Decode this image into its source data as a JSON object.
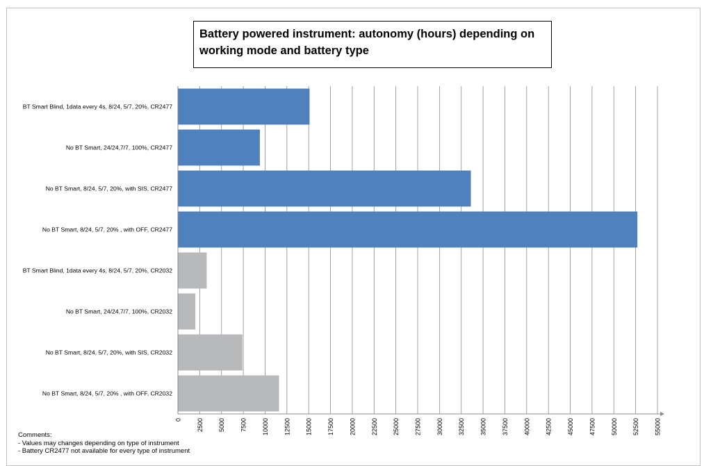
{
  "chart_data": {
    "type": "bar",
    "orientation": "horizontal",
    "title": "Battery powered instrument: autonomy  (hours) depending on working mode and battery type",
    "categories": [
      "BT Smart Blind, 1data every 4s, 8/24, 5/7, 20%, CR2477",
      "No BT Smart, 24/24,7/7, 100%, CR2477",
      "No BT Smart, 8/24, 5/7, 20%, with SIS, CR2477",
      "No BT Smart, 8/24, 5/7, 20% , with OFF, CR2477",
      "BT Smart Blind, 1data every 4s, 8/24, 5/7, 20%, CR2032",
      "No BT Smart, 24/24,7/7, 100%, CR2032",
      "No BT Smart, 8/24, 5/7, 20%, with SIS, CR2032",
      "No BT Smart, 8/24, 5/7, 20% , with OFF, CR2032"
    ],
    "values": [
      15100,
      9400,
      33600,
      52700,
      3300,
      2000,
      7400,
      11600
    ],
    "bar_colors": [
      "#4f81bd",
      "#4f81bd",
      "#4f81bd",
      "#4f81bd",
      "#b8b9bb",
      "#b8b9bb",
      "#b8b9bb",
      "#b8b9bb"
    ],
    "xlim": [
      0,
      55000
    ],
    "xticks": [
      "0",
      "2500",
      "5000",
      "7500",
      "10000",
      "12500",
      "15000",
      "17500",
      "20000",
      "22500",
      "25000",
      "27500",
      "30000",
      "32500",
      "35000",
      "37500",
      "40000",
      "42500",
      "45000",
      "47500",
      "50000",
      "52500",
      "55000"
    ],
    "xlabel": "",
    "ylabel": "",
    "grid": true,
    "legend": "none"
  },
  "title_text": "Battery powered instrument: autonomy  (hours) depending on working mode and battery type",
  "comments": {
    "heading": "Comments:",
    "line1": "- Values may changes depending on type of instrument",
    "line2": "- Battery CR2477 not available for every type of instrument"
  }
}
